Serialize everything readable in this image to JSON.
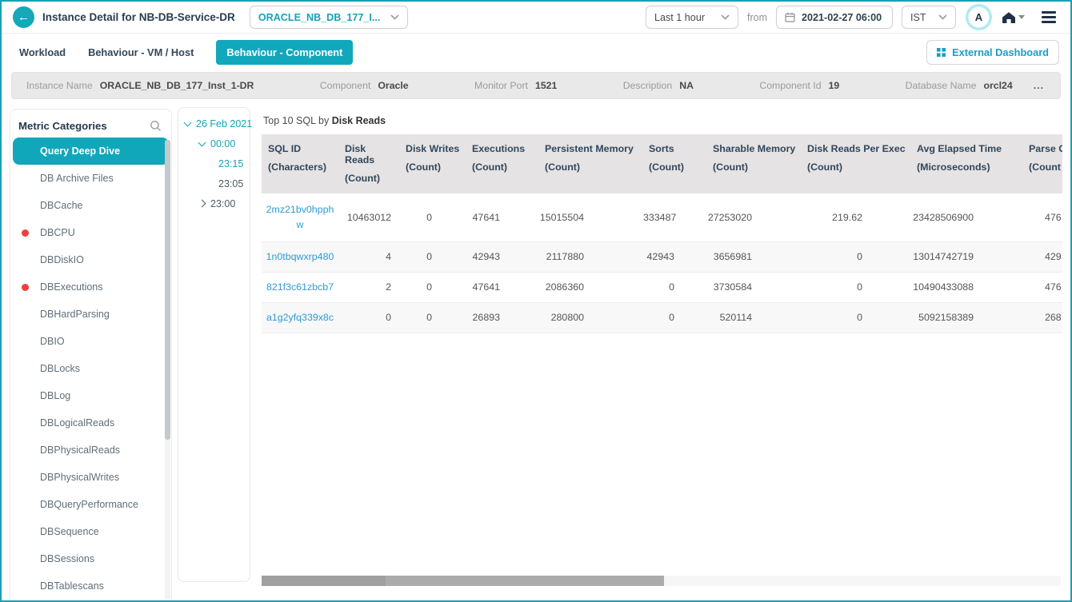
{
  "header": {
    "back_glyph": "←",
    "title": "Instance Detail for NB-DB-Service-DR",
    "instance_selector": "ORACLE_NB_DB_177_I...",
    "time_range": "Last 1 hour",
    "from_label": "from",
    "datetime_value": "2021-02-27 06:00",
    "timezone": "IST",
    "avatar_initial": "A"
  },
  "tabs": [
    {
      "label": "Workload",
      "active": false
    },
    {
      "label": "Behaviour - VM / Host",
      "active": false
    },
    {
      "label": "Behaviour - Component",
      "active": true
    }
  ],
  "external_dashboard_label": "External Dashboard",
  "info_bar": {
    "fields": [
      {
        "label": "Instance Name",
        "value": "ORACLE_NB_DB_177_Inst_1-DR"
      },
      {
        "label": "Component",
        "value": "Oracle"
      },
      {
        "label": "Monitor Port",
        "value": "1521"
      },
      {
        "label": "Description",
        "value": "NA"
      },
      {
        "label": "Component Id",
        "value": "19"
      },
      {
        "label": "Database Name",
        "value": "orcl24"
      }
    ],
    "more_label": "..."
  },
  "sidebar": {
    "title": "Metric Categories",
    "items": [
      {
        "label": "Query Deep Dive",
        "active": true,
        "alert": false
      },
      {
        "label": "DB Archive Files",
        "active": false,
        "alert": false
      },
      {
        "label": "DBCache",
        "active": false,
        "alert": false
      },
      {
        "label": "DBCPU",
        "active": false,
        "alert": true
      },
      {
        "label": "DBDiskIO",
        "active": false,
        "alert": false
      },
      {
        "label": "DBExecutions",
        "active": false,
        "alert": true
      },
      {
        "label": "DBHardParsing",
        "active": false,
        "alert": false
      },
      {
        "label": "DBIO",
        "active": false,
        "alert": false
      },
      {
        "label": "DBLocks",
        "active": false,
        "alert": false
      },
      {
        "label": "DBLog",
        "active": false,
        "alert": false
      },
      {
        "label": "DBLogicalReads",
        "active": false,
        "alert": false
      },
      {
        "label": "DBPhysicalReads",
        "active": false,
        "alert": false
      },
      {
        "label": "DBPhysicalWrites",
        "active": false,
        "alert": false
      },
      {
        "label": "DBQueryPerformance",
        "active": false,
        "alert": false
      },
      {
        "label": "DBSequence",
        "active": false,
        "alert": false
      },
      {
        "label": "DBSessions",
        "active": false,
        "alert": false
      },
      {
        "label": "DBTablescans",
        "active": false,
        "alert": false
      }
    ]
  },
  "time_tree": {
    "nodes": [
      {
        "label": "26 Feb 2021",
        "level": 0,
        "state": "expanded",
        "highlight": true
      },
      {
        "label": "00:00",
        "level": 1,
        "state": "expanded",
        "highlight": true
      },
      {
        "label": "23:15",
        "level": 2,
        "state": "leaf",
        "highlight": true
      },
      {
        "label": "23:05",
        "level": 2,
        "state": "leaf",
        "highlight": false
      },
      {
        "label": "23:00",
        "level": 1,
        "state": "collapsed",
        "highlight": false
      }
    ]
  },
  "table": {
    "title_prefix": "Top 10 SQL by ",
    "title_metric": "Disk Reads",
    "columns": [
      {
        "name": "SQL ID",
        "unit": "(Characters)"
      },
      {
        "name": "Disk Reads",
        "unit": "(Count)"
      },
      {
        "name": "Disk Writes",
        "unit": "(Count)"
      },
      {
        "name": "Executions",
        "unit": "(Count)"
      },
      {
        "name": "Persistent Memory",
        "unit": "(Count)"
      },
      {
        "name": "Sorts",
        "unit": "(Count)"
      },
      {
        "name": "Sharable Memory",
        "unit": "(Count)"
      },
      {
        "name": "Disk Reads Per Exec",
        "unit": "(Count)"
      },
      {
        "name": "Avg Elapsed Time",
        "unit": "(Microseconds)"
      },
      {
        "name": "Parse C",
        "unit": "(Count"
      }
    ],
    "rows": [
      {
        "sql_id_lines": [
          "2mz21bv0hpph",
          "w"
        ],
        "values": [
          "10463012",
          "0",
          "47641",
          "15015504",
          "333487",
          "27253020",
          "219.62",
          "23428506900",
          "476"
        ]
      },
      {
        "sql_id_lines": [
          "1n0tbqwxrp480"
        ],
        "values": [
          "4",
          "0",
          "42943",
          "2117880",
          "42943",
          "3656981",
          "0",
          "13014742719",
          "429"
        ]
      },
      {
        "sql_id_lines": [
          "821f3c61zbcb7"
        ],
        "values": [
          "2",
          "0",
          "47641",
          "2086360",
          "0",
          "3730584",
          "0",
          "10490433088",
          "476"
        ]
      },
      {
        "sql_id_lines": [
          "a1g2yfq339x8c"
        ],
        "values": [
          "0",
          "0",
          "26893",
          "280800",
          "0",
          "520114",
          "0",
          "5092158389",
          "268"
        ]
      }
    ]
  },
  "icons": [
    "back-arrow-icon",
    "chevron-down-icon",
    "calendar-icon",
    "avatar",
    "home-icon",
    "hamburger-menu-icon",
    "grid-icon",
    "search-icon",
    "alert-dot-icon"
  ],
  "colors": {
    "accent_teal": "#12a8bb",
    "link_blue": "#2d9bd5",
    "alert_red": "#f03e3e",
    "header_text": "#31465c",
    "infobar_bg": "#e9e9e9",
    "table_header_bg": "#e5e3e3"
  }
}
